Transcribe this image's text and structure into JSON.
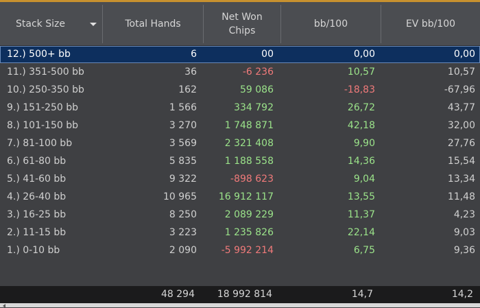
{
  "table": {
    "headers": {
      "stack_size": "Stack Size",
      "total_hands": "Total Hands",
      "net_won_line1": "Net Won",
      "net_won_line2": "Chips",
      "bb100": "bb/100",
      "ev_bb100": "EV bb/100"
    },
    "rows": [
      {
        "stack": "12.) 500+ bb",
        "hands": "6",
        "net": "00",
        "bb100": "0,00",
        "ev": "0,00",
        "net_sign": "neutral",
        "bb_sign": "neutral",
        "selected": true
      },
      {
        "stack": "11.) 351-500 bb",
        "hands": "36",
        "net": "-6 236",
        "bb100": "10,57",
        "ev": "10,57",
        "net_sign": "neg",
        "bb_sign": "pos"
      },
      {
        "stack": "10.) 250-350 bb",
        "hands": "162",
        "net": "59 086",
        "bb100": "-18,83",
        "ev": "-67,96",
        "net_sign": "pos",
        "bb_sign": "neg"
      },
      {
        "stack": "9.) 151-250 bb",
        "hands": "1 566",
        "net": "334 792",
        "bb100": "26,72",
        "ev": "43,77",
        "net_sign": "pos",
        "bb_sign": "pos"
      },
      {
        "stack": "8.) 101-150 bb",
        "hands": "3 270",
        "net": "1 748 871",
        "bb100": "42,18",
        "ev": "32,00",
        "net_sign": "pos",
        "bb_sign": "pos"
      },
      {
        "stack": "7.) 81-100 bb",
        "hands": "3 569",
        "net": "2 321 408",
        "bb100": "9,90",
        "ev": "27,76",
        "net_sign": "pos",
        "bb_sign": "pos"
      },
      {
        "stack": "6.) 61-80 bb",
        "hands": "5 835",
        "net": "1 188 558",
        "bb100": "14,36",
        "ev": "15,54",
        "net_sign": "pos",
        "bb_sign": "pos"
      },
      {
        "stack": "5.) 41-60 bb",
        "hands": "9 322",
        "net": "-898 623",
        "bb100": "9,04",
        "ev": "13,34",
        "net_sign": "neg",
        "bb_sign": "pos"
      },
      {
        "stack": "4.) 26-40 bb",
        "hands": "10 965",
        "net": "16 912 117",
        "bb100": "13,55",
        "ev": "11,48",
        "net_sign": "pos",
        "bb_sign": "pos"
      },
      {
        "stack": "3.) 16-25 bb",
        "hands": "8 250",
        "net": "2 089 229",
        "bb100": "11,37",
        "ev": "4,23",
        "net_sign": "pos",
        "bb_sign": "pos"
      },
      {
        "stack": "2.) 11-15 bb",
        "hands": "3 223",
        "net": "1 235 826",
        "bb100": "22,14",
        "ev": "9,03",
        "net_sign": "pos",
        "bb_sign": "pos"
      },
      {
        "stack": "1.) 0-10 bb",
        "hands": "2 090",
        "net": "-5 992 214",
        "bb100": "6,75",
        "ev": "9,36",
        "net_sign": "neg",
        "bb_sign": "pos"
      }
    ],
    "totals": {
      "hands": "48 294",
      "net": "18 992 814",
      "bb100": "14,7",
      "ev": "14,2"
    }
  },
  "colors": {
    "positive": "#9be38a",
    "negative": "#f07a7a",
    "selected_row": "#0d2f5e",
    "accent": "#c7912f"
  },
  "icons": {
    "sort_dropdown": "chevron-down-icon",
    "scroll_left": "arrow-left-icon"
  }
}
